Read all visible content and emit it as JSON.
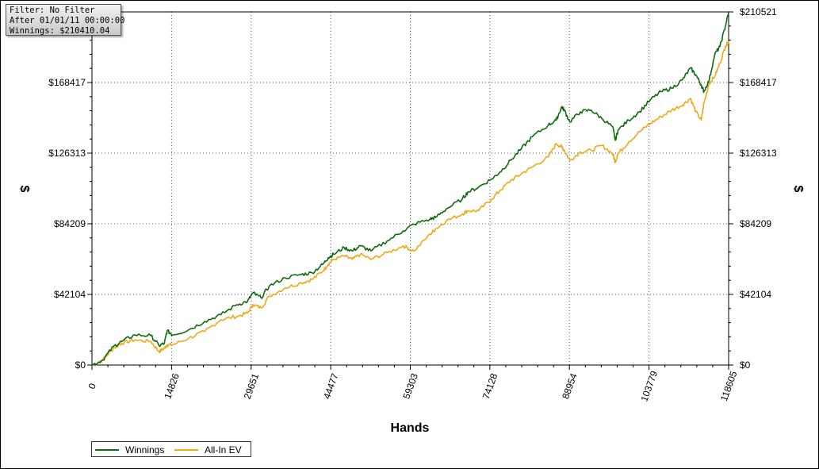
{
  "info": {
    "filter": "Filter: No Filter",
    "after": "After 01/01/11 00:00:00",
    "winnings": "Winnings: $210410.04"
  },
  "colors": {
    "winnings": "#0d6b0d",
    "allin_ev": "#f0a818",
    "grid": "#555555",
    "axis": "#000000"
  },
  "chart_data": {
    "type": "line",
    "xlabel": "Hands",
    "ylabel": "$",
    "xlim": [
      0,
      118605
    ],
    "ylim": [
      0,
      210521
    ],
    "x_ticks": [
      0,
      14826,
      29651,
      44477,
      59303,
      74128,
      88954,
      103779,
      118605
    ],
    "x_tick_labels": [
      "0",
      "14826",
      "29651",
      "44477",
      "59303",
      "74128",
      "88954",
      "103779",
      "118605"
    ],
    "y_ticks": [
      0,
      42104,
      84209,
      126313,
      168417,
      210521
    ],
    "y_tick_labels": [
      "$0",
      "$42104",
      "$84209",
      "$126313",
      "$168417",
      "$210521"
    ],
    "grid": true,
    "legend_position": "bottom-left",
    "series": [
      {
        "name": "Winnings",
        "x": [
          0,
          2000,
          4000,
          5500,
          8000,
          11000,
          12500,
          13500,
          14000,
          15000,
          18000,
          21000,
          24000,
          27000,
          29000,
          30000,
          31500,
          33000,
          36000,
          39000,
          41000,
          43000,
          44000,
          45000,
          47000,
          48500,
          50000,
          52000,
          55000,
          58000,
          60000,
          63000,
          64000,
          66000,
          69000,
          70000,
          72000,
          74500,
          76000,
          78000,
          80000,
          82000,
          85000,
          86500,
          87500,
          88000,
          89000,
          91000,
          93000,
          95000,
          97000,
          97500,
          98000,
          100000,
          102000,
          104000,
          106000,
          108000,
          110000,
          111500,
          112500,
          113500,
          114000,
          115000,
          116000,
          117000,
          118000,
          118605
        ],
        "y": [
          0,
          3000,
          11000,
          14000,
          18000,
          17500,
          11500,
          13000,
          20500,
          18000,
          21000,
          26000,
          30000,
          36000,
          38000,
          43000,
          40000,
          47000,
          52000,
          54000,
          55000,
          60000,
          64000,
          66000,
          70000,
          68000,
          71000,
          68000,
          74000,
          80000,
          84000,
          87000,
          88000,
          93000,
          99000,
          103000,
          106000,
          111000,
          115000,
          122000,
          129000,
          136000,
          143000,
          146000,
          154000,
          152000,
          145000,
          151000,
          152000,
          147000,
          142000,
          134000,
          140000,
          146000,
          151000,
          158000,
          163000,
          165000,
          170000,
          177000,
          173000,
          167000,
          163000,
          170000,
          185000,
          190000,
          202000,
          210410
        ]
      },
      {
        "name": "All-In EV",
        "x": [
          0,
          2000,
          4000,
          5500,
          8000,
          11000,
          12500,
          13500,
          14000,
          15000,
          18000,
          21000,
          24000,
          27000,
          29000,
          30000,
          31500,
          33000,
          36000,
          39000,
          41000,
          43000,
          44000,
          45000,
          47000,
          48500,
          50000,
          52000,
          55000,
          58000,
          60000,
          63000,
          64000,
          66000,
          69000,
          70000,
          72000,
          74500,
          76000,
          78000,
          80000,
          82000,
          85000,
          86500,
          87500,
          88000,
          89000,
          91000,
          93000,
          95000,
          97000,
          97500,
          98000,
          100000,
          102000,
          104000,
          106000,
          108000,
          110000,
          111500,
          112500,
          113500,
          114000,
          115000,
          116000,
          117000,
          118000,
          118605
        ],
        "y": [
          0,
          3000,
          10000,
          13000,
          15000,
          14000,
          8000,
          10000,
          12000,
          12000,
          16000,
          20000,
          27000,
          29000,
          31000,
          36000,
          34000,
          41000,
          46000,
          49000,
          51000,
          56000,
          60000,
          63000,
          65000,
          63000,
          66000,
          63000,
          67000,
          71000,
          68000,
          78000,
          81000,
          86000,
          90000,
          92000,
          92000,
          99000,
          104000,
          110000,
          114000,
          118000,
          124000,
          132000,
          130000,
          128000,
          122000,
          127000,
          128000,
          131000,
          126000,
          121000,
          126000,
          133000,
          139000,
          144000,
          148000,
          152000,
          155000,
          159000,
          151000,
          146000,
          156000,
          168000,
          172000,
          180000,
          190000,
          193000
        ]
      }
    ]
  },
  "legend": [
    {
      "label": "Winnings"
    },
    {
      "label": "All-In EV"
    }
  ]
}
